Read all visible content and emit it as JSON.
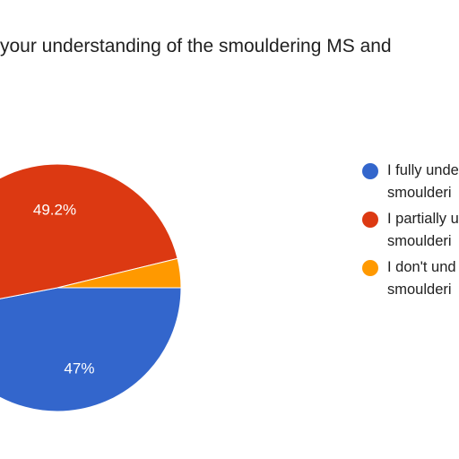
{
  "chart_data": {
    "type": "pie",
    "title": "your understanding of the smouldering MS and",
    "slices": [
      {
        "label_lines": [
          "I fully unde",
          "smoulderi"
        ],
        "value": 47.0,
        "display": "47%",
        "color": "#3366cc"
      },
      {
        "label_lines": [
          "I partially u",
          "smoulderi"
        ],
        "value": 49.2,
        "display": "49.2%",
        "color": "#dc3912"
      },
      {
        "label_lines": [
          "I don't und",
          "smoulderi"
        ],
        "value": 3.8,
        "display": "",
        "color": "#ff9900"
      }
    ],
    "legend_position": "right"
  }
}
